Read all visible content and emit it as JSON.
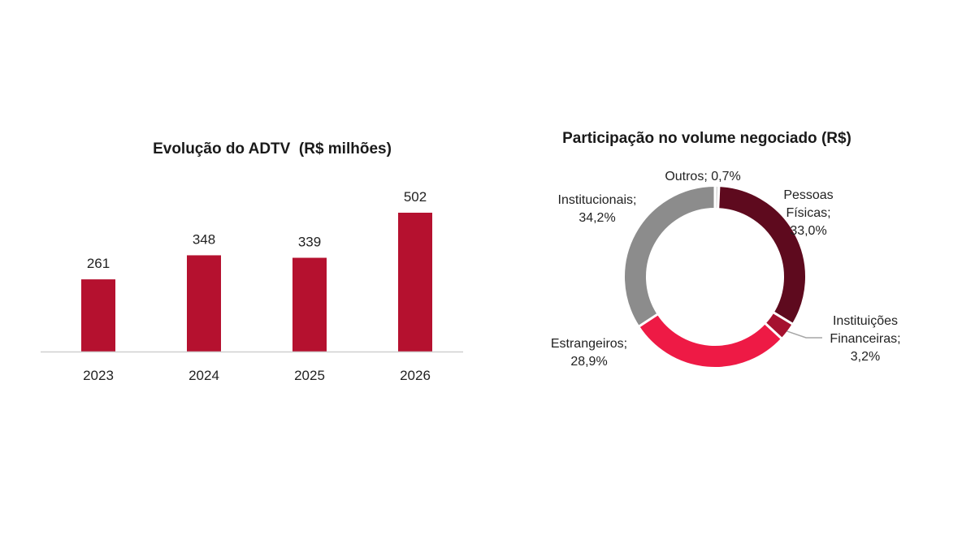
{
  "chart_data": [
    {
      "type": "bar",
      "title": "Evolução do ADTV  (R$ milhões)",
      "categories": [
        "2023",
        "2024",
        "2025",
        "2026"
      ],
      "values": [
        261,
        348,
        339,
        502
      ],
      "data_labels": [
        "261",
        "348",
        "339",
        "502"
      ],
      "ylim": [
        0,
        560
      ],
      "grid": false,
      "color": "#B5112F"
    },
    {
      "type": "pie",
      "donut": true,
      "title": "Participação no volume negociado (R$)",
      "slices": [
        {
          "label": "Outros; 0,7%",
          "value": 0.7,
          "color": "#D9D9D9"
        },
        {
          "label": "Pessoas Físicas; 33,0%",
          "value": 33.0,
          "color": "#5E0A1E"
        },
        {
          "label": "Instituições Financeiras; 3,2%",
          "value": 3.2,
          "color": "#A5112F"
        },
        {
          "label": "Estrangeiros; 28,9%",
          "value": 28.9,
          "color": "#EE1A45"
        },
        {
          "label": "Institucionais; 34,2%",
          "value": 34.2,
          "color": "#8C8C8C"
        }
      ],
      "label_lines": [
        [
          "Outros; 0,7%"
        ],
        [
          "Pessoas",
          "Físicas;",
          "33,0%"
        ],
        [
          "Instituições",
          "Financeiras;",
          "3,2%"
        ],
        [
          "Estrangeiros;",
          "28,9%"
        ],
        [
          "Institucionais;",
          "34,2%"
        ]
      ]
    }
  ]
}
